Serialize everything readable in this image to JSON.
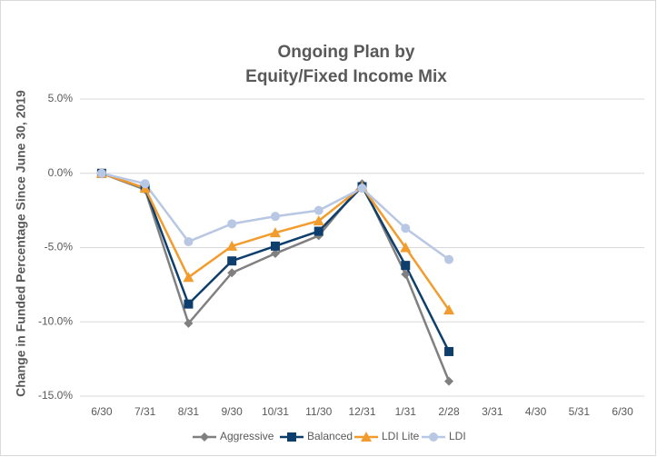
{
  "chart_data": {
    "type": "line",
    "title": [
      "Ongoing Plan by",
      "Equity/Fixed Income Mix"
    ],
    "y_label": "Change in Funded Percentage Since June 30, 2019",
    "categories": [
      "6/30",
      "7/31",
      "8/31",
      "9/30",
      "10/31",
      "11/30",
      "12/31",
      "1/31",
      "2/28",
      "3/31",
      "4/30",
      "5/31",
      "6/30"
    ],
    "series": [
      {
        "name": "Aggressive",
        "color": "#808080",
        "marker": "diamond",
        "values": [
          0,
          -1.1,
          -10.1,
          -6.7,
          -5.4,
          -4.2,
          -0.7,
          -6.8,
          -14.0,
          null,
          null,
          null,
          null
        ]
      },
      {
        "name": "Balanced",
        "color": "#0e3e6c",
        "marker": "square",
        "values": [
          0,
          -1.0,
          -8.8,
          -5.9,
          -4.9,
          -3.9,
          -0.9,
          -6.2,
          -12.0,
          null,
          null,
          null,
          null
        ]
      },
      {
        "name": "LDI Lite",
        "color": "#f29c2e",
        "marker": "triangle",
        "values": [
          0,
          -1.0,
          -7.0,
          -4.9,
          -4.0,
          -3.2,
          -0.9,
          -5.0,
          -9.2,
          null,
          null,
          null,
          null
        ]
      },
      {
        "name": "LDI",
        "color": "#b8c7e3",
        "marker": "circle",
        "values": [
          0,
          -0.7,
          -4.6,
          -3.4,
          -2.9,
          -2.5,
          -1.0,
          -3.7,
          -5.8,
          null,
          null,
          null,
          null
        ]
      }
    ],
    "ylim": [
      -15,
      5
    ],
    "yticks": [
      {
        "value": 5,
        "label": "5.0%"
      },
      {
        "value": 0,
        "label": "0.0%"
      },
      {
        "value": -5,
        "label": "-5.0%"
      },
      {
        "value": -10,
        "label": "-10.0%"
      },
      {
        "value": -15,
        "label": "-15.0%"
      }
    ],
    "grid": true,
    "legend": "bottom"
  }
}
